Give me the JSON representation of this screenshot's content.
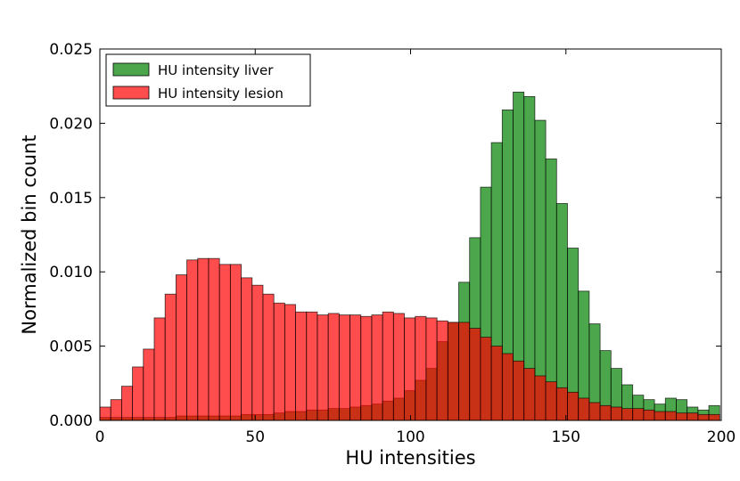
{
  "chart_data": {
    "type": "bar",
    "subtype": "overlapping-histogram",
    "title": "",
    "xlabel": "HU intensities",
    "ylabel": "Normalized bin count",
    "xlim": [
      0,
      200
    ],
    "ylim": [
      0,
      0.025
    ],
    "bin_width": 3.5,
    "xticks": [
      0,
      50,
      100,
      150,
      200
    ],
    "xtick_labels": [
      "0",
      "50",
      "100",
      "150",
      "200"
    ],
    "yticks": [
      0.0,
      0.005,
      0.01,
      0.015,
      0.02,
      0.025
    ],
    "ytick_labels": [
      "0.000",
      "0.005",
      "0.010",
      "0.015",
      "0.020",
      "0.025"
    ],
    "grid": false,
    "legend_position": "top-left",
    "series": [
      {
        "name": "HU intensity liver",
        "color": "#008000",
        "alpha": 0.7,
        "bin_starts": [
          0,
          3.5,
          7,
          10.5,
          14,
          17.5,
          21,
          24.5,
          28,
          31.5,
          35,
          38.5,
          42,
          45.5,
          49,
          52.5,
          56,
          59.5,
          63,
          66.5,
          70,
          73.5,
          77,
          80.5,
          84,
          87.5,
          91,
          94.5,
          98,
          101.5,
          105,
          108.5,
          112,
          115.5,
          119,
          122.5,
          126,
          129.5,
          133,
          136.5,
          140,
          143.5,
          147,
          150.5,
          154,
          157.5,
          161,
          164.5,
          168,
          171.5,
          175,
          178.5,
          182,
          185.5,
          189,
          192.5,
          196
        ],
        "values": [
          0.0002,
          0.0002,
          0.0002,
          0.0002,
          0.0002,
          0.0002,
          0.0002,
          0.0003,
          0.0003,
          0.0003,
          0.0003,
          0.0003,
          0.0003,
          0.0004,
          0.0004,
          0.0004,
          0.0005,
          0.0006,
          0.0006,
          0.0007,
          0.0007,
          0.0008,
          0.0008,
          0.0009,
          0.001,
          0.0011,
          0.0013,
          0.0015,
          0.002,
          0.0027,
          0.0035,
          0.0053,
          0.0066,
          0.0093,
          0.0123,
          0.0157,
          0.0187,
          0.0209,
          0.0221,
          0.0218,
          0.0202,
          0.0176,
          0.0146,
          0.0116,
          0.0087,
          0.0065,
          0.0047,
          0.0035,
          0.0024,
          0.0017,
          0.0014,
          0.0011,
          0.0015,
          0.0014,
          0.0009,
          0.0007,
          0.001
        ]
      },
      {
        "name": "HU intensity lesion",
        "color": "#ff0000",
        "alpha": 0.7,
        "bin_starts": [
          0,
          3.5,
          7,
          10.5,
          14,
          17.5,
          21,
          24.5,
          28,
          31.5,
          35,
          38.5,
          42,
          45.5,
          49,
          52.5,
          56,
          59.5,
          63,
          66.5,
          70,
          73.5,
          77,
          80.5,
          84,
          87.5,
          91,
          94.5,
          98,
          101.5,
          105,
          108.5,
          112,
          115.5,
          119,
          122.5,
          126,
          129.5,
          133,
          136.5,
          140,
          143.5,
          147,
          150.5,
          154,
          157.5,
          161,
          164.5,
          168,
          171.5,
          175,
          178.5,
          182,
          185.5,
          189,
          192.5,
          196
        ],
        "values": [
          0.0009,
          0.0014,
          0.0023,
          0.0036,
          0.0048,
          0.0069,
          0.0085,
          0.0098,
          0.0108,
          0.0109,
          0.0109,
          0.0105,
          0.0105,
          0.0096,
          0.0091,
          0.0085,
          0.0079,
          0.0078,
          0.0073,
          0.0073,
          0.0071,
          0.0072,
          0.0071,
          0.0071,
          0.007,
          0.0071,
          0.0073,
          0.0072,
          0.0069,
          0.007,
          0.0069,
          0.0067,
          0.0066,
          0.0066,
          0.0062,
          0.0056,
          0.005,
          0.0045,
          0.004,
          0.0035,
          0.003,
          0.0026,
          0.0022,
          0.0019,
          0.0015,
          0.0012,
          0.001,
          0.0009,
          0.0008,
          0.0008,
          0.0007,
          0.0006,
          0.0006,
          0.0005,
          0.0005,
          0.0004,
          0.0004
        ]
      }
    ]
  }
}
